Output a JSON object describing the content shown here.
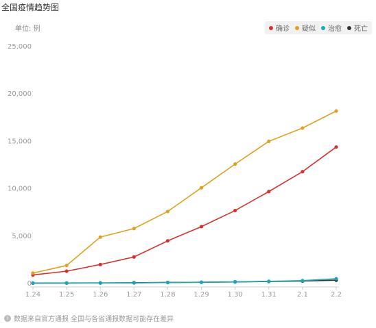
{
  "title": "全国疫情趋势图",
  "unit_label": "单位: 例",
  "footnote": "数据来自官方通报 全国与各省通报数据可能存在差异",
  "footnote_icon": "info-icon",
  "chart_data": {
    "type": "line",
    "categories": [
      "1.24",
      "1.25",
      "1.26",
      "1.27",
      "1.28",
      "1.29",
      "1.30",
      "1.31",
      "2.1",
      "2.2"
    ],
    "ylim": [
      0,
      25000
    ],
    "yticks": [
      0,
      5000,
      10000,
      15000,
      20000,
      25000
    ],
    "ytick_labels": [
      "0",
      "5,000",
      "10,000",
      "15,000",
      "20,000",
      "25,000"
    ],
    "legend_position": "top-right",
    "series": [
      {
        "name": "确诊",
        "color": "#d6322e",
        "values": [
          900,
          1300,
          2000,
          2800,
          4500,
          6000,
          7700,
          9700,
          11800,
          14400
        ]
      },
      {
        "name": "疑似",
        "color": "#e0a020",
        "values": [
          1100,
          1900,
          4900,
          5800,
          7600,
          10100,
          12600,
          15000,
          16400,
          18200
        ]
      },
      {
        "name": "治愈",
        "color": "#1aa8b4",
        "values": [
          30,
          40,
          50,
          60,
          100,
          130,
          170,
          230,
          300,
          500
        ]
      },
      {
        "name": "死亡",
        "color": "#333333",
        "values": [
          40,
          50,
          60,
          80,
          110,
          130,
          170,
          210,
          260,
          350
        ]
      }
    ]
  }
}
